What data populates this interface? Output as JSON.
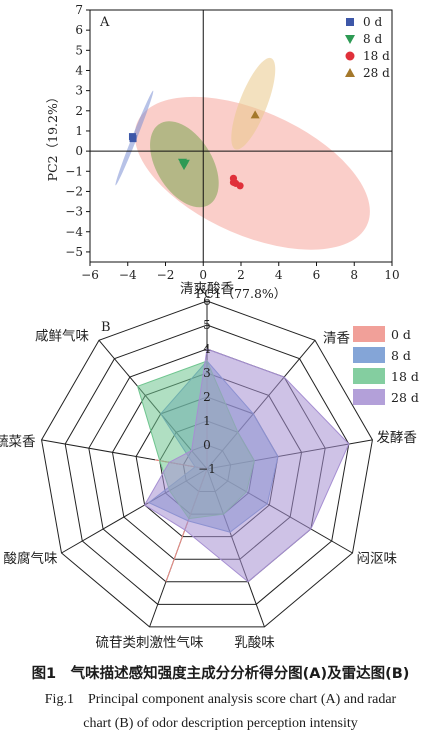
{
  "chart_data": [
    {
      "type": "scatter",
      "panel_label": "A",
      "xlabel": "PC1（77.8%）",
      "ylabel": "PC2（19.2%）",
      "xlim": [
        -6,
        10
      ],
      "ylim": [
        -5.5,
        7
      ],
      "xticks": [
        "−6",
        "−4",
        "−2",
        "0",
        "2",
        "4",
        "6",
        "8",
        "10"
      ],
      "yticks": [
        "−5",
        "−4",
        "−3",
        "−2",
        "−1",
        "0",
        "1",
        "2",
        "3",
        "4",
        "5",
        "6",
        "7"
      ],
      "series": [
        {
          "name": "0 d",
          "color": "#3d57a8",
          "marker": "square",
          "points": [
            [
              -3.75,
              0.72
            ],
            [
              -3.72,
              0.62
            ]
          ],
          "ellipse": {
            "cx": -3.65,
            "cy": 0.65,
            "rx": 2.55,
            "ry": 0.13,
            "angle": 67,
            "fill": "#7b8fd4"
          }
        },
        {
          "name": "8 d",
          "color": "#2d9a54",
          "marker": "triangle-down",
          "points": [
            [
              -1.1,
              -0.55
            ],
            [
              -1.02,
              -0.72
            ],
            [
              -0.95,
              -0.6
            ]
          ],
          "ellipse": {
            "cx": -1.0,
            "cy": -0.65,
            "rx": 1.45,
            "ry": 2.4,
            "angle": 35,
            "fill": "#7aa44f"
          }
        },
        {
          "name": "18 d",
          "color": "#e0303a",
          "marker": "circle",
          "points": [
            [
              1.6,
              -1.35
            ],
            [
              1.72,
              -1.6
            ],
            [
              1.95,
              -1.72
            ],
            [
              1.6,
              -1.55
            ]
          ],
          "ellipse": {
            "cx": 2.6,
            "cy": -1.1,
            "rx": 6.6,
            "ry": 3.1,
            "angle": -22,
            "fill": "#f6a59d"
          }
        },
        {
          "name": "28 d",
          "color": "#a4782b",
          "marker": "triangle-up",
          "points": [
            [
              2.75,
              1.8
            ]
          ],
          "ellipse": {
            "cx": 2.65,
            "cy": 2.35,
            "rx": 2.45,
            "ry": 0.72,
            "angle": 67,
            "fill": "#e9c98b"
          }
        }
      ]
    },
    {
      "type": "radar",
      "panel_label": "B",
      "axes": [
        "清爽酸香",
        "清香",
        "发酵香",
        "闷沤味",
        "乳酸味",
        "硫苷类刺激性气味",
        "酸腐气味",
        "蔬菜香",
        "咸鲜气味"
      ],
      "rlim": [
        -1,
        6
      ],
      "rticks": [
        "−1",
        "0",
        "1",
        "2",
        "3",
        "4",
        "5",
        "6"
      ],
      "series": [
        {
          "name": "0 d",
          "color": "#ef8f87",
          "values": [
            3.0,
            -1,
            -1,
            -1,
            -1,
            4.0,
            -1,
            1.2,
            -1
          ]
        },
        {
          "name": "8 d",
          "color": "#6f95d0",
          "values": [
            3.5,
            2.0,
            2.0,
            1.9,
            1.8,
            1.3,
            1.8,
            -0.5,
            2.0
          ]
        },
        {
          "name": "18 d",
          "color": "#6fc58f",
          "values": [
            3.5,
            1.0,
            1.0,
            0.9,
            1.0,
            1.2,
            0.8,
            1.0,
            3.5
          ]
        },
        {
          "name": "28 d",
          "color": "#a68fd2",
          "values": [
            4.0,
            4.0,
            5.0,
            4.0,
            4.0,
            1.7,
            2.0,
            0.6,
            0
          ]
        }
      ]
    }
  ],
  "caption": {
    "cn": "图1　气味描述感知强度主成分分析得分图(A)及雷达图(B)",
    "en_line1": "Fig.1　Principal component analysis score chart (A) and radar",
    "en_line2": "chart (B) of odor description perception intensity"
  }
}
